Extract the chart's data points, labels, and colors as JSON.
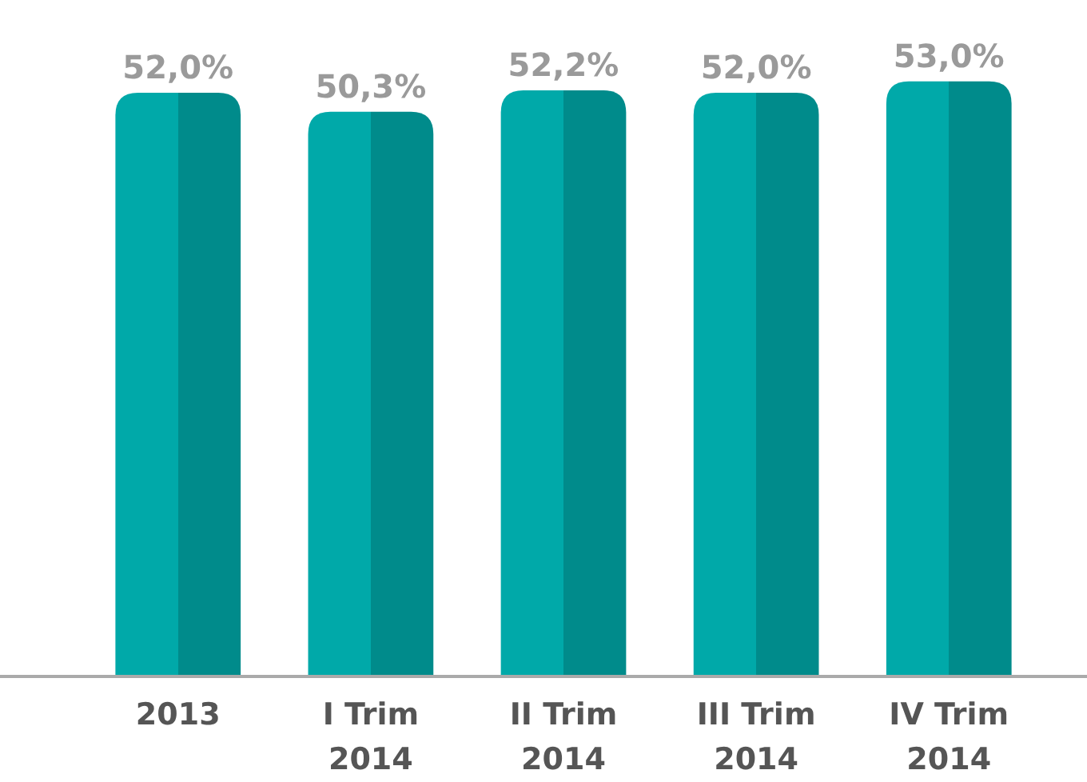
{
  "chart_data": {
    "type": "bar",
    "categories": [
      "2013",
      "I Trim 2014",
      "II Trim 2014",
      "III Trim 2014",
      "IV Trim 2014"
    ],
    "values": [
      52.0,
      50.3,
      52.2,
      52.0,
      53.0
    ],
    "value_labels": [
      "52,0%",
      "50,3%",
      "52,2%",
      "52,0%",
      "53,0%"
    ],
    "colors": [
      "#00a9a9",
      "#00a9a9",
      "#00a9a9",
      "#00a9a9",
      "#00a9a9"
    ],
    "tick_labels": "x"
  }
}
